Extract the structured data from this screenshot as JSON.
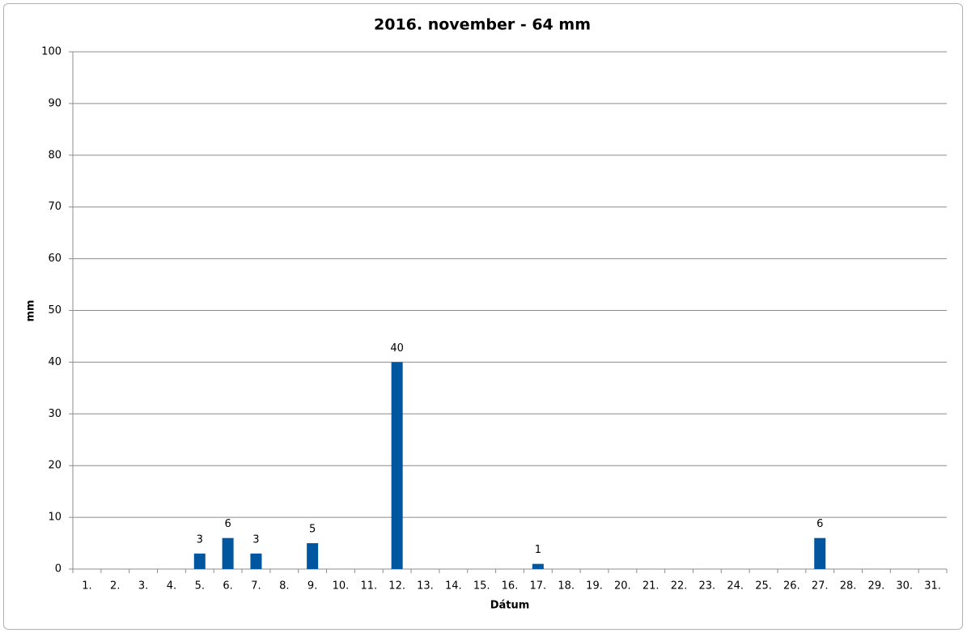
{
  "chart_data": {
    "type": "bar",
    "title": "2016. november - 64 mm",
    "x_label": "Dátum",
    "y_label": "mm",
    "categories": [
      "1.",
      "2.",
      "3.",
      "4.",
      "5.",
      "6.",
      "7.",
      "8.",
      "9.",
      "10.",
      "11.",
      "12.",
      "13.",
      "14.",
      "15.",
      "16.",
      "17.",
      "18.",
      "19.",
      "20.",
      "21.",
      "22.",
      "23.",
      "24.",
      "25.",
      "26.",
      "27.",
      "28.",
      "29.",
      "30.",
      "31."
    ],
    "values": [
      null,
      null,
      null,
      null,
      3,
      6,
      3,
      null,
      5,
      null,
      null,
      40,
      null,
      null,
      null,
      null,
      1,
      null,
      null,
      null,
      null,
      null,
      null,
      null,
      null,
      null,
      6,
      null,
      null,
      null,
      null
    ],
    "color": "#00569f",
    "ylim": [
      0,
      100
    ],
    "yticks": [
      0,
      10,
      20,
      30,
      40,
      50,
      60,
      70,
      80,
      90,
      100
    ],
    "grid": true,
    "data_labels": true
  }
}
